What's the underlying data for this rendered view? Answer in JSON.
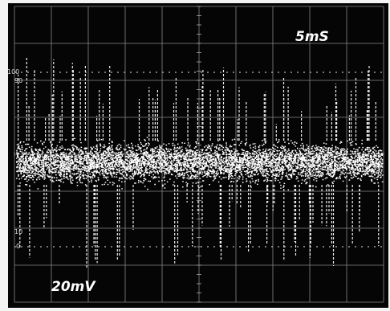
{
  "screen": {
    "time_div": "5mS",
    "volt_div": "20mV",
    "markers": [
      "100",
      "90",
      "10",
      "0"
    ]
  }
}
